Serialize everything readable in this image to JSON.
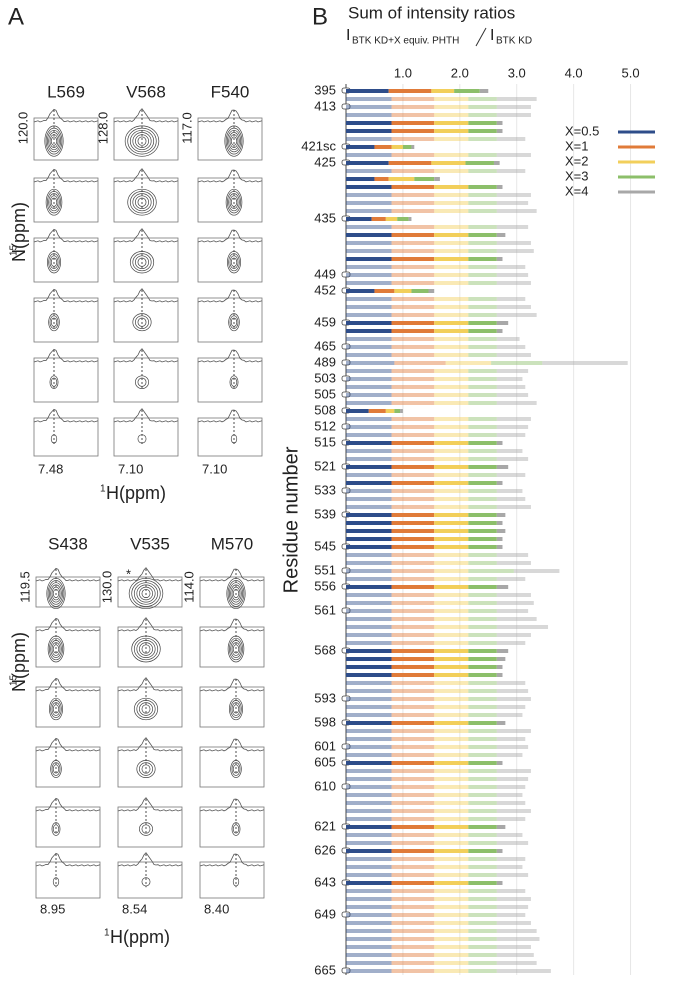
{
  "panel_a": {
    "label": "A",
    "ylabel_sup": "15",
    "ylabel": "N(ppm)",
    "xlabel_sup": "1",
    "xlabel": "H(ppm)",
    "star": "*",
    "top": {
      "residues": [
        "L569",
        "V568",
        "F540"
      ],
      "n_ppm": [
        "120.0",
        "128.0",
        "117.0"
      ],
      "h_ppm": [
        "7.48",
        "7.10",
        "7.10"
      ]
    },
    "bottom": {
      "residues": [
        "S438",
        "V535",
        "M570"
      ],
      "n_ppm": [
        "119.5",
        "130.0",
        "114.0"
      ],
      "h_ppm": [
        "8.95",
        "8.54",
        "8.40"
      ]
    }
  },
  "chart_data": {
    "type": "stacked-barh",
    "panel_label": "B",
    "title": "Sum of intensity ratios",
    "intensity_symbol": "I",
    "numerator_sub": "BTK KD+X equiv. PHTH",
    "denominator_sub": "BTK KD",
    "ylabel": "Residue number",
    "xlim": [
      0,
      5.5
    ],
    "xticks": [
      {
        "value": 1,
        "label": "1.0"
      },
      {
        "value": 2,
        "label": "2.0"
      },
      {
        "value": 3,
        "label": "3.0"
      },
      {
        "value": 4,
        "label": "4.0"
      },
      {
        "value": 5,
        "label": "5.0"
      }
    ],
    "grid": true,
    "legend": "upper right",
    "highlighted": [
      0,
      4,
      5,
      7,
      9,
      11,
      12,
      16,
      18,
      21,
      25,
      29,
      30,
      40,
      44,
      47,
      49,
      53,
      54,
      55,
      56,
      57,
      62,
      70,
      71,
      72,
      73,
      79,
      84,
      92,
      95,
      99
    ],
    "categories": [
      "395",
      null,
      "413",
      null,
      null,
      null,
      null,
      "421sc",
      null,
      "425",
      null,
      null,
      null,
      null,
      null,
      null,
      "435",
      null,
      null,
      null,
      null,
      null,
      null,
      "449",
      null,
      "452",
      null,
      null,
      null,
      "459",
      null,
      null,
      "465",
      null,
      "489",
      null,
      "503",
      null,
      "505",
      null,
      "508",
      null,
      "512",
      null,
      "515",
      null,
      null,
      "521",
      null,
      null,
      "533",
      null,
      null,
      "539",
      null,
      null,
      null,
      "545",
      null,
      null,
      "551",
      null,
      "556",
      null,
      null,
      "561",
      null,
      null,
      null,
      null,
      "568",
      null,
      null,
      null,
      null,
      null,
      "593",
      null,
      null,
      "598",
      null,
      null,
      "601",
      null,
      "605",
      null,
      null,
      "610",
      null,
      null,
      null,
      null,
      "621",
      null,
      null,
      "626",
      null,
      null,
      null,
      "643",
      null,
      null,
      null,
      "649",
      null,
      null,
      null,
      null,
      null,
      null,
      "665"
    ],
    "series": [
      {
        "name": "X=0.5",
        "color": "#2e4d8a",
        "values": [
          0.75,
          0.8,
          0.8,
          0.8,
          0.8,
          0.8,
          0.8,
          0.5,
          0.8,
          0.75,
          0.8,
          0.5,
          0.8,
          0.8,
          0.8,
          0.8,
          0.45,
          0.8,
          0.8,
          0.8,
          0.8,
          0.8,
          0.8,
          0.8,
          0.8,
          0.5,
          0.8,
          0.8,
          0.8,
          0.8,
          0.8,
          0.8,
          0.8,
          0.8,
          0.85,
          0.8,
          0.8,
          0.8,
          0.8,
          0.8,
          0.4,
          0.8,
          0.8,
          0.8,
          0.8,
          0.8,
          0.8,
          0.8,
          0.8,
          0.8,
          0.8,
          0.8,
          0.8,
          0.8,
          0.8,
          0.8,
          0.8,
          0.8,
          0.8,
          0.8,
          0.8,
          0.8,
          0.8,
          0.8,
          0.8,
          0.8,
          0.8,
          0.8,
          0.8,
          0.8,
          0.8,
          0.8,
          0.8,
          0.8,
          0.8,
          0.8,
          0.8,
          0.8,
          0.8,
          0.8,
          0.8,
          0.8,
          0.8,
          0.8,
          0.8,
          0.8,
          0.8,
          0.8,
          0.8,
          0.8,
          0.8,
          0.8,
          0.8,
          0.8,
          0.8,
          0.8,
          0.8,
          0.8,
          0.8,
          0.8,
          0.8,
          0.8,
          0.8,
          0.8,
          0.8,
          0.8,
          0.8,
          0.8,
          0.8,
          0.8,
          0.8
        ]
      },
      {
        "name": "X=1",
        "color": "#e07b39",
        "values": [
          0.75,
          0.75,
          0.75,
          0.75,
          0.75,
          0.75,
          0.75,
          0.3,
          0.75,
          0.75,
          0.75,
          0.25,
          0.75,
          0.75,
          0.75,
          0.75,
          0.25,
          0.75,
          0.75,
          0.75,
          0.75,
          0.75,
          0.75,
          0.75,
          0.75,
          0.35,
          0.75,
          0.75,
          0.75,
          0.75,
          0.75,
          0.75,
          0.75,
          0.75,
          0.9,
          0.75,
          0.75,
          0.75,
          0.75,
          0.75,
          0.3,
          0.75,
          0.75,
          0.75,
          0.75,
          0.75,
          0.75,
          0.75,
          0.75,
          0.75,
          0.75,
          0.75,
          0.75,
          0.75,
          0.75,
          0.75,
          0.75,
          0.75,
          0.75,
          0.75,
          0.75,
          0.75,
          0.75,
          0.75,
          0.75,
          0.75,
          0.75,
          0.75,
          0.75,
          0.75,
          0.75,
          0.75,
          0.75,
          0.75,
          0.75,
          0.75,
          0.75,
          0.75,
          0.75,
          0.75,
          0.75,
          0.75,
          0.75,
          0.75,
          0.75,
          0.75,
          0.75,
          0.75,
          0.75,
          0.75,
          0.75,
          0.75,
          0.75,
          0.75,
          0.75,
          0.75,
          0.75,
          0.75,
          0.75,
          0.75,
          0.75,
          0.75,
          0.75,
          0.75,
          0.75,
          0.75,
          0.75,
          0.75,
          0.75,
          0.75,
          0.75
        ]
      },
      {
        "name": "X=2",
        "color": "#f2cf5b",
        "values": [
          0.4,
          0.6,
          0.6,
          0.6,
          0.6,
          0.6,
          0.6,
          0.2,
          0.6,
          0.6,
          0.6,
          0.45,
          0.6,
          0.6,
          0.6,
          0.6,
          0.2,
          0.6,
          0.6,
          0.6,
          0.6,
          0.6,
          0.6,
          0.6,
          0.6,
          0.3,
          0.6,
          0.6,
          0.6,
          0.6,
          0.6,
          0.6,
          0.6,
          0.6,
          0.8,
          0.6,
          0.6,
          0.6,
          0.6,
          0.6,
          0.15,
          0.6,
          0.6,
          0.6,
          0.6,
          0.6,
          0.6,
          0.6,
          0.6,
          0.6,
          0.6,
          0.6,
          0.6,
          0.6,
          0.6,
          0.6,
          0.6,
          0.6,
          0.6,
          0.6,
          0.6,
          0.6,
          0.6,
          0.6,
          0.6,
          0.6,
          0.6,
          0.6,
          0.6,
          0.6,
          0.6,
          0.6,
          0.6,
          0.6,
          0.6,
          0.6,
          0.6,
          0.6,
          0.6,
          0.6,
          0.6,
          0.6,
          0.6,
          0.6,
          0.6,
          0.6,
          0.6,
          0.6,
          0.6,
          0.6,
          0.6,
          0.6,
          0.6,
          0.6,
          0.6,
          0.6,
          0.6,
          0.6,
          0.6,
          0.6,
          0.6,
          0.6,
          0.6,
          0.6,
          0.6,
          0.6,
          0.6,
          0.6,
          0.6,
          0.6,
          0.6
        ]
      },
      {
        "name": "X=3",
        "color": "#8cbf6a",
        "values": [
          0.45,
          0.5,
          0.5,
          0.5,
          0.5,
          0.5,
          0.5,
          0.15,
          0.5,
          0.5,
          0.5,
          0.35,
          0.5,
          0.5,
          0.5,
          0.5,
          0.2,
          0.5,
          0.5,
          0.5,
          0.5,
          0.5,
          0.5,
          0.5,
          0.5,
          0.3,
          0.5,
          0.5,
          0.5,
          0.5,
          0.5,
          0.5,
          0.5,
          0.5,
          0.9,
          0.5,
          0.5,
          0.5,
          0.5,
          0.5,
          0.1,
          0.5,
          0.5,
          0.5,
          0.5,
          0.5,
          0.5,
          0.5,
          0.5,
          0.5,
          0.5,
          0.5,
          0.5,
          0.5,
          0.5,
          0.5,
          0.5,
          0.5,
          0.5,
          0.5,
          0.8,
          0.5,
          0.5,
          0.5,
          0.5,
          0.5,
          0.5,
          0.5,
          0.5,
          0.5,
          0.5,
          0.5,
          0.5,
          0.5,
          0.5,
          0.5,
          0.5,
          0.5,
          0.5,
          0.5,
          0.5,
          0.5,
          0.5,
          0.5,
          0.5,
          0.5,
          0.5,
          0.5,
          0.5,
          0.5,
          0.5,
          0.5,
          0.5,
          0.5,
          0.5,
          0.5,
          0.5,
          0.5,
          0.5,
          0.5,
          0.5,
          0.5,
          0.5,
          0.5,
          0.5,
          0.5,
          0.5,
          0.5,
          0.5,
          0.5,
          0.5
        ]
      },
      {
        "name": "X=4",
        "color": "#a8a8a8",
        "values": [
          0.15,
          0.7,
          0.6,
          0.6,
          0.1,
          0.1,
          0.5,
          0.05,
          0.6,
          0.1,
          0.5,
          0.1,
          0.1,
          0.6,
          0.55,
          0.7,
          0.05,
          0.55,
          0.15,
          0.6,
          0.65,
          0.1,
          0.5,
          0.55,
          0.6,
          0.1,
          0.5,
          0.6,
          0.7,
          0.2,
          0.1,
          0.4,
          0.5,
          0.6,
          1.5,
          0.55,
          0.45,
          0.5,
          0.55,
          0.7,
          0.05,
          0.6,
          0.55,
          0.5,
          0.1,
          0.45,
          0.55,
          0.2,
          0.5,
          0.1,
          0.45,
          0.5,
          0.6,
          0.15,
          0.1,
          0.15,
          0.1,
          0.1,
          0.55,
          0.6,
          0.8,
          0.5,
          0.2,
          0.6,
          0.65,
          0.55,
          0.7,
          0.9,
          0.6,
          0.5,
          0.2,
          0.15,
          0.1,
          0.1,
          0.5,
          0.55,
          0.6,
          0.5,
          0.45,
          0.15,
          0.6,
          0.5,
          0.55,
          0.45,
          0.1,
          0.6,
          0.55,
          0.5,
          0.45,
          0.5,
          0.6,
          0.5,
          0.15,
          0.45,
          0.55,
          0.1,
          0.5,
          0.45,
          0.55,
          0.1,
          0.5,
          0.6,
          0.55,
          0.5,
          0.6,
          0.7,
          0.75,
          0.6,
          0.65,
          0.7,
          0.95
        ]
      }
    ]
  }
}
